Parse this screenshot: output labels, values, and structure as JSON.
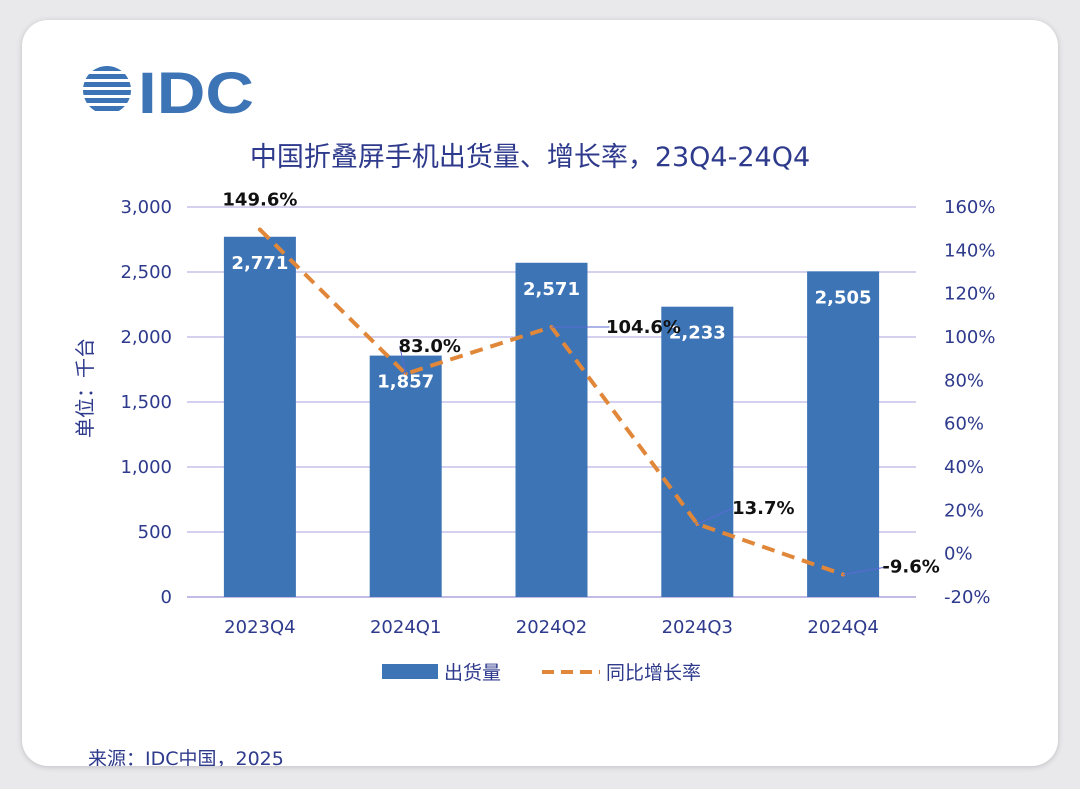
{
  "logo_text": "IDC",
  "chart_data": {
    "type": "bar+line",
    "title": "中国折叠屏手机出货量、增长率，23Q4-24Q4",
    "y_left_label": "单位：千台",
    "categories": [
      "2023Q4",
      "2024Q1",
      "2024Q2",
      "2024Q3",
      "2024Q4"
    ],
    "series": [
      {
        "name": "出货量",
        "kind": "bar",
        "axis": "left",
        "values": [
          2771,
          1857,
          2571,
          2233,
          2505
        ],
        "labels": [
          "2,771",
          "1,857",
          "2,571",
          "2,233",
          "2,505"
        ],
        "color": "#3d74b5"
      },
      {
        "name": "同比增长率",
        "kind": "line",
        "axis": "right",
        "style": "dashed",
        "values": [
          149.6,
          83.0,
          104.6,
          13.7,
          -9.6
        ],
        "labels": [
          "149.6%",
          "83.0%",
          "104.6%",
          "13.7%",
          "-9.6%"
        ],
        "color": "#e0873a"
      }
    ],
    "y_left": {
      "min": 0,
      "max": 3000,
      "step": 500,
      "ticks": [
        "0",
        "500",
        "1,000",
        "1,500",
        "2,000",
        "2,500",
        "3,000"
      ]
    },
    "y_right": {
      "min": -20,
      "max": 160,
      "step": 20,
      "ticks": [
        "-20%",
        "0%",
        "20%",
        "40%",
        "60%",
        "80%",
        "100%",
        "120%",
        "140%",
        "160%"
      ]
    },
    "legend": {
      "position": "bottom",
      "items": [
        "出货量",
        "同比增长率"
      ]
    },
    "grid": true
  },
  "colors": {
    "bar": "#3d74b5",
    "line": "#e0873a",
    "accent_text": "#2e3a8c",
    "grid": "#b9b3e6"
  },
  "source": "来源：IDC中国，2025"
}
